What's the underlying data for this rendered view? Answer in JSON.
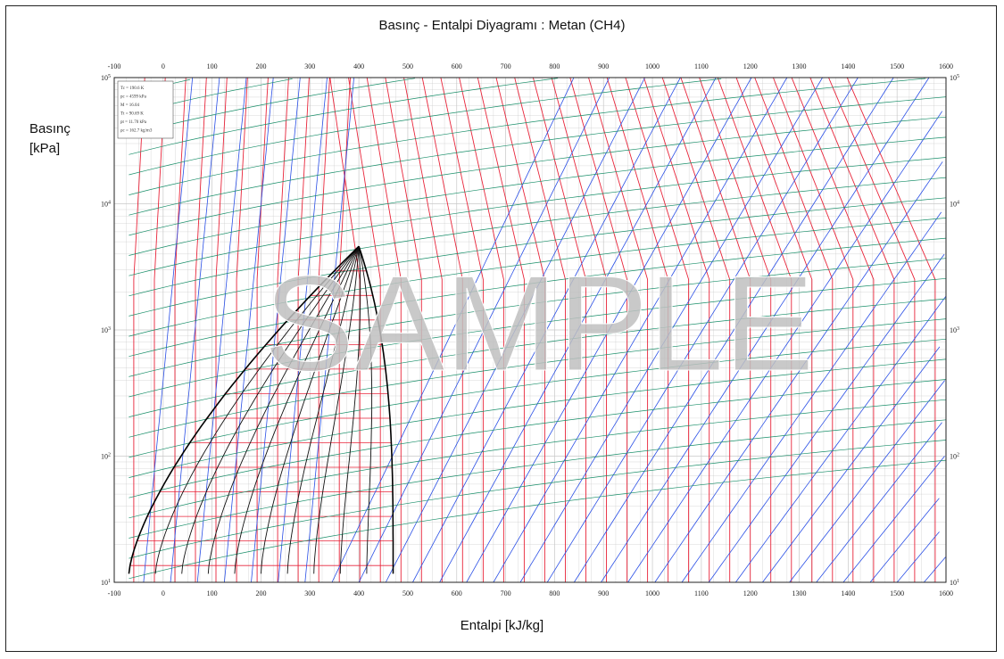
{
  "chart_data": {
    "type": "line",
    "title": "Basınç - Entalpi Diyagramı : Metan (CH4)",
    "xlabel": "Entalpi [kJ/kg]",
    "ylabel_line1": "Basınç",
    "ylabel_line2": "[kPa]",
    "x_ticks": [
      "-100",
      "0",
      "100",
      "200",
      "300",
      "400",
      "500",
      "600",
      "700",
      "800",
      "900",
      "1000",
      "1100",
      "1200",
      "1300",
      "1400",
      "1500",
      "1600"
    ],
    "y_ticks": [
      {
        "base": "10",
        "exp": "1"
      },
      {
        "base": "10",
        "exp": "2"
      },
      {
        "base": "10",
        "exp": "3"
      },
      {
        "base": "10",
        "exp": "4"
      },
      {
        "base": "10",
        "exp": "5"
      }
    ],
    "xlim": [
      -100,
      1600
    ],
    "ylim": [
      10,
      100000
    ],
    "y_scale": "log",
    "grid": true,
    "series_colors": {
      "isotherm": "#e8253a",
      "isentrope": "#2a4fe6",
      "isochore": "#1a8f6a",
      "quality": "#111111",
      "saturation_dome": "#000000"
    },
    "watermark": "SAMPLE",
    "legend_lines": [
      "Tc = 190.6 K",
      "pc = 4599 kPa",
      "M = 16.04",
      "Tt = 90.69 K",
      "pt = 11.70 kPa",
      "ρc = 162.7 kg/m3"
    ]
  }
}
